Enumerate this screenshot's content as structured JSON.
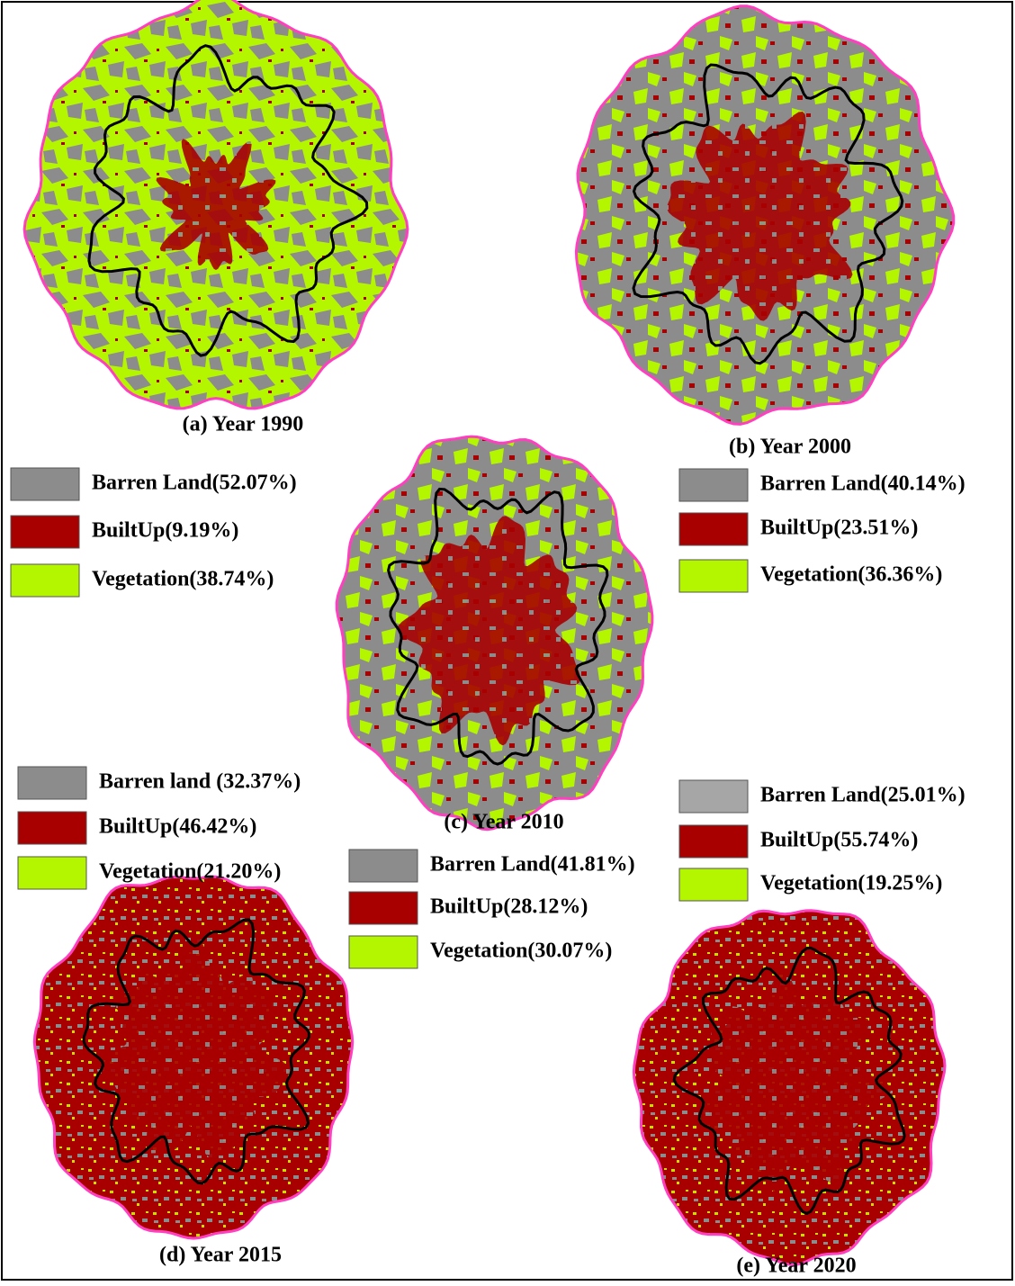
{
  "maps": [
    {
      "caption": "(a) Year 1990",
      "legend": [
        {
          "label": "Barren Land(52.07%)",
          "color": "#8c8c8c"
        },
        {
          "label": "BuiltUp(9.19%)",
          "color": "#a80000"
        },
        {
          "label": "Vegetation(38.74%)",
          "color": "#b4f500"
        }
      ]
    },
    {
      "caption": "(b) Year 2000",
      "legend": [
        {
          "label": "Barren Land(40.14%)",
          "color": "#8c8c8c"
        },
        {
          "label": "BuiltUp(23.51%)",
          "color": "#a80000"
        },
        {
          "label": "Vegetation(36.36%)",
          "color": "#b4f500"
        }
      ]
    },
    {
      "caption": "(c) Year 2010",
      "legend": [
        {
          "label": "Barren Land(41.81%)",
          "color": "#8c8c8c"
        },
        {
          "label": "BuiltUp(28.12%)",
          "color": "#a80000"
        },
        {
          "label": "Vegetation(30.07%)",
          "color": "#b4f500"
        }
      ]
    },
    {
      "caption": "(d) Year 2015",
      "legend": [
        {
          "label": "Barren land (32.37%)",
          "color": "#8c8c8c"
        },
        {
          "label": "BuiltUp(46.42%)",
          "color": "#a80000"
        },
        {
          "label": "Vegetation(21.20%)",
          "color": "#b4f500"
        }
      ]
    },
    {
      "caption": "(e) Year 2020",
      "legend": [
        {
          "label": "Barren Land(25.01%)",
          "color": "#a6a6a6"
        },
        {
          "label": "BuiltUp(55.74%)",
          "color": "#a80000"
        },
        {
          "label": "Vegetation(19.25%)",
          "color": "#b4f500"
        }
      ]
    }
  ]
}
